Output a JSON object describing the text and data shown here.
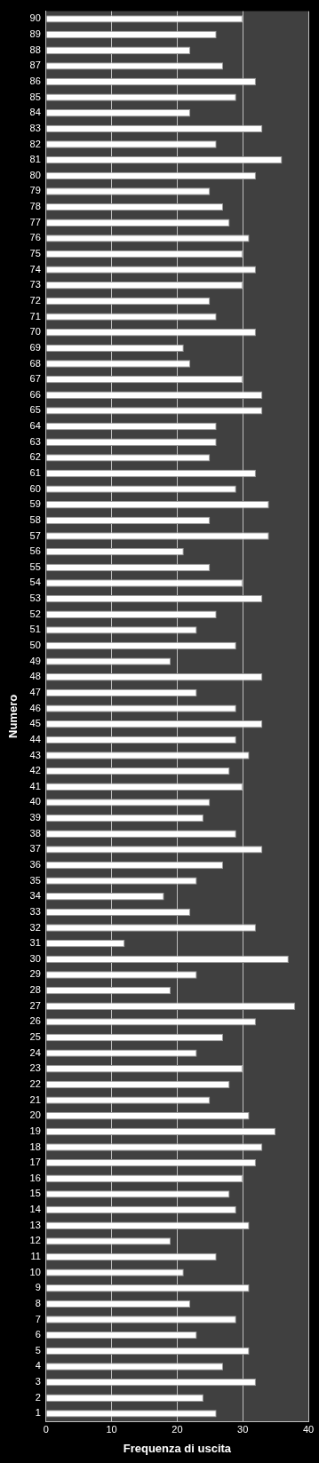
{
  "chart_data": {
    "type": "bar",
    "orientation": "horizontal",
    "xlabel": "Frequenza di uscita",
    "ylabel": "Numero",
    "categories": [
      "90",
      "89",
      "88",
      "87",
      "86",
      "85",
      "84",
      "83",
      "82",
      "81",
      "80",
      "79",
      "78",
      "77",
      "76",
      "75",
      "74",
      "73",
      "72",
      "71",
      "70",
      "69",
      "68",
      "67",
      "66",
      "65",
      "64",
      "63",
      "62",
      "61",
      "60",
      "59",
      "58",
      "57",
      "56",
      "55",
      "54",
      "53",
      "52",
      "51",
      "50",
      "49",
      "48",
      "47",
      "46",
      "45",
      "44",
      "43",
      "42",
      "41",
      "40",
      "39",
      "38",
      "37",
      "36",
      "35",
      "34",
      "33",
      "32",
      "31",
      "30",
      "29",
      "28",
      "27",
      "26",
      "25",
      "24",
      "23",
      "22",
      "21",
      "20",
      "19",
      "18",
      "17",
      "16",
      "15",
      "14",
      "13",
      "12",
      "11",
      "10",
      "9",
      "8",
      "7",
      "6",
      "5",
      "4",
      "3",
      "2",
      "1"
    ],
    "values": [
      30,
      26,
      22,
      27,
      32,
      29,
      22,
      33,
      26,
      36,
      32,
      25,
      27,
      28,
      31,
      30,
      32,
      30,
      25,
      26,
      32,
      21,
      22,
      30,
      33,
      33,
      26,
      26,
      25,
      32,
      29,
      34,
      25,
      34,
      21,
      25,
      30,
      33,
      26,
      23,
      29,
      19,
      33,
      23,
      29,
      33,
      29,
      31,
      28,
      30,
      25,
      24,
      29,
      33,
      27,
      23,
      18,
      22,
      32,
      12,
      37,
      23,
      19,
      38,
      32,
      27,
      23,
      30,
      28,
      25,
      31,
      35,
      33,
      32,
      30,
      28,
      29,
      31,
      19,
      26,
      21,
      31,
      22,
      29,
      23,
      31,
      27,
      32,
      24,
      26
    ],
    "color": "#ffffff",
    "xlim": [
      0,
      40
    ],
    "xticks": [
      0,
      10,
      20,
      30,
      40
    ],
    "grid": "x",
    "legend": false
  }
}
